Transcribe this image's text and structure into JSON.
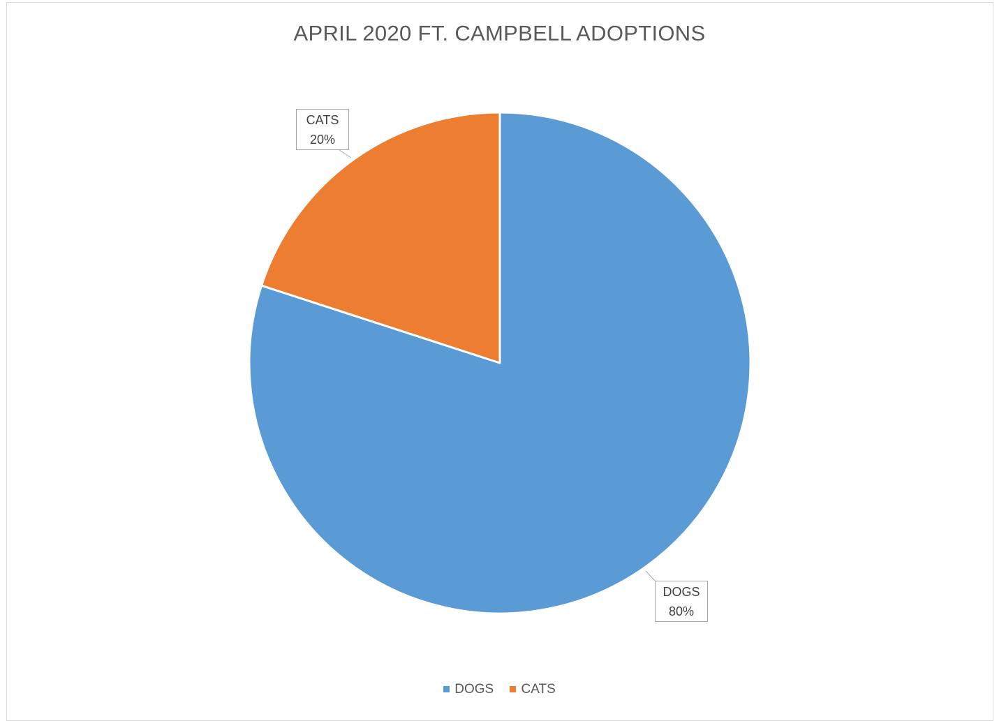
{
  "chart_data": {
    "type": "pie",
    "title": "APRIL 2020 FT. CAMPBELL ADOPTIONS",
    "categories": [
      "DOGS",
      "CATS"
    ],
    "values": [
      80,
      20
    ],
    "unit": "%",
    "data_labels": [
      {
        "name": "DOGS",
        "value": "80%"
      },
      {
        "name": "CATS",
        "value": "20%"
      }
    ],
    "colors": [
      "#5b9bd5",
      "#ed7d31"
    ],
    "legend_position": "bottom"
  }
}
